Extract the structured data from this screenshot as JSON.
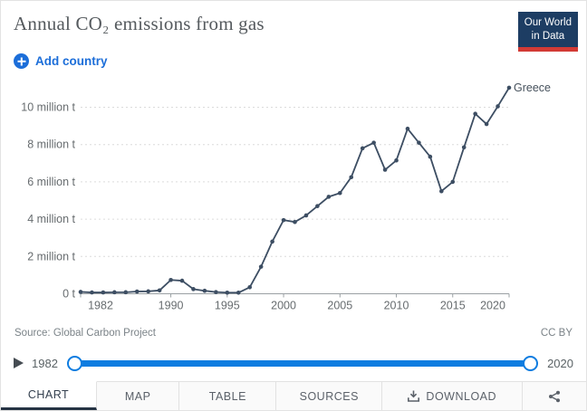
{
  "header": {
    "title": "Annual CO₂ emissions from gas",
    "add_country_label": "Add country",
    "logo": {
      "line1": "Our World",
      "line2": "in Data"
    }
  },
  "chart_data": {
    "type": "line",
    "title": "Annual CO₂ emissions from gas",
    "x_range": [
      1982,
      2020
    ],
    "y_range": [
      0,
      11.3
    ],
    "grid": true,
    "x_ticks": [
      1982,
      1990,
      1995,
      2000,
      2005,
      2010,
      2015,
      2020
    ],
    "y_ticks": [
      {
        "value": 0,
        "label": "0 t"
      },
      {
        "value": 2,
        "label": "2 million t"
      },
      {
        "value": 4,
        "label": "4 million t"
      },
      {
        "value": 6,
        "label": "6 million t"
      },
      {
        "value": 8,
        "label": "8 million t"
      },
      {
        "value": 10,
        "label": "10 million t"
      }
    ],
    "y_unit": "million tonnes",
    "series": [
      {
        "name": "Greece",
        "color": "#3d4e63",
        "x": [
          1982,
          1983,
          1984,
          1985,
          1986,
          1987,
          1988,
          1989,
          1990,
          1991,
          1992,
          1993,
          1994,
          1995,
          1996,
          1997,
          1998,
          1999,
          2000,
          2001,
          2002,
          2003,
          2004,
          2005,
          2006,
          2007,
          2008,
          2009,
          2010,
          2011,
          2012,
          2013,
          2014,
          2015,
          2016,
          2017,
          2018,
          2019,
          2020
        ],
        "values": [
          0.1,
          0.07,
          0.07,
          0.08,
          0.08,
          0.12,
          0.13,
          0.18,
          0.74,
          0.7,
          0.25,
          0.16,
          0.09,
          0.06,
          0.06,
          0.35,
          1.45,
          2.8,
          3.95,
          3.85,
          4.2,
          4.7,
          5.2,
          5.4,
          6.25,
          7.8,
          8.1,
          6.65,
          7.15,
          8.85,
          8.1,
          7.35,
          5.5,
          6.0,
          7.85,
          9.65,
          9.1,
          10.05,
          11.05
        ]
      }
    ],
    "legend_position": "end-of-line-label"
  },
  "footer": {
    "source": "Source: Global Carbon Project",
    "license": "CC BY"
  },
  "timeline": {
    "start_year": "1982",
    "end_year": "2020"
  },
  "tabs": [
    {
      "label": "CHART",
      "active": true
    },
    {
      "label": "MAP",
      "active": false
    },
    {
      "label": "TABLE",
      "active": false
    },
    {
      "label": "SOURCES",
      "active": false
    },
    {
      "label": "DOWNLOAD",
      "active": false,
      "icon": "download-icon"
    },
    {
      "label": "",
      "active": false,
      "icon": "share-icon"
    }
  ],
  "icons": {
    "add_country": "plus-circle",
    "play": "play-triangle",
    "download": "download-tray",
    "share": "share-nodes"
  },
  "colors": {
    "accent_blue": "#1c6ed9",
    "slider_blue": "#0d7ce0",
    "line": "#3d4e63",
    "logo_navy": "#1d3d63",
    "logo_red": "#d23a35",
    "tab_underline": "#253344"
  }
}
